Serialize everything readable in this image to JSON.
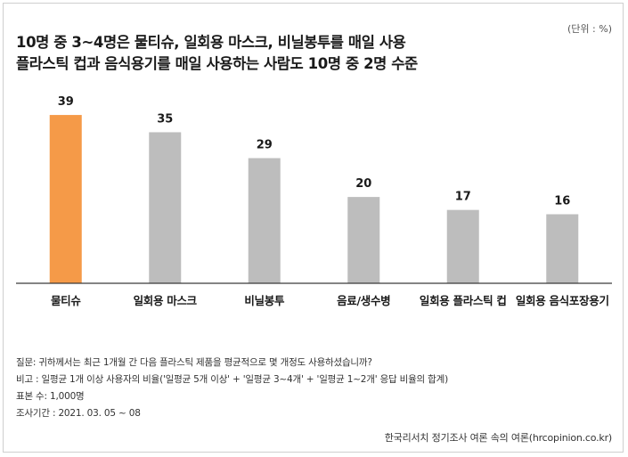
{
  "unit": "(단위 : %)",
  "title_lines": [
    "10명 중 3~4명은 물티슈, 일회용 마스크, 비닐봉투를 매일 사용",
    "플라스틱 컵과 음식용기를 매일 사용하는 사람도 10명 중 2명 수준"
  ],
  "colors": {
    "highlight": "#F59A48",
    "bar": "#BDBDBD",
    "baseline": "#3a3a3a"
  },
  "chart_data": {
    "type": "bar",
    "categories": [
      "물티슈",
      "일회용 마스크",
      "비닐봉투",
      "음료/생수병",
      "일회용 플라스틱 컵",
      "일회용 음식포장용기"
    ],
    "values": [
      39,
      35,
      29,
      20,
      17,
      16
    ],
    "highlight_index": 0,
    "ylim": [
      0,
      45
    ],
    "grid": false,
    "title": "",
    "xlabel": "",
    "ylabel": ""
  },
  "notes": [
    "질문: 귀하께서는 최근 1개월 간 다음 플라스틱 제품을 평균적으로 몇 개정도 사용하셨습니까?",
    "비고 : 일평균 1개 이상 사용자의 비율('일평균 5개 이상' + '일평균 3~4개' + '일평균 1~2개' 응답 비율의 합계)",
    "표본 수: 1,000명",
    "조사기간 : 2021. 03. 05 ~ 08"
  ],
  "source": "한국리서치 정기조사 여론 속의 여론(hrcopinion.co.kr)"
}
